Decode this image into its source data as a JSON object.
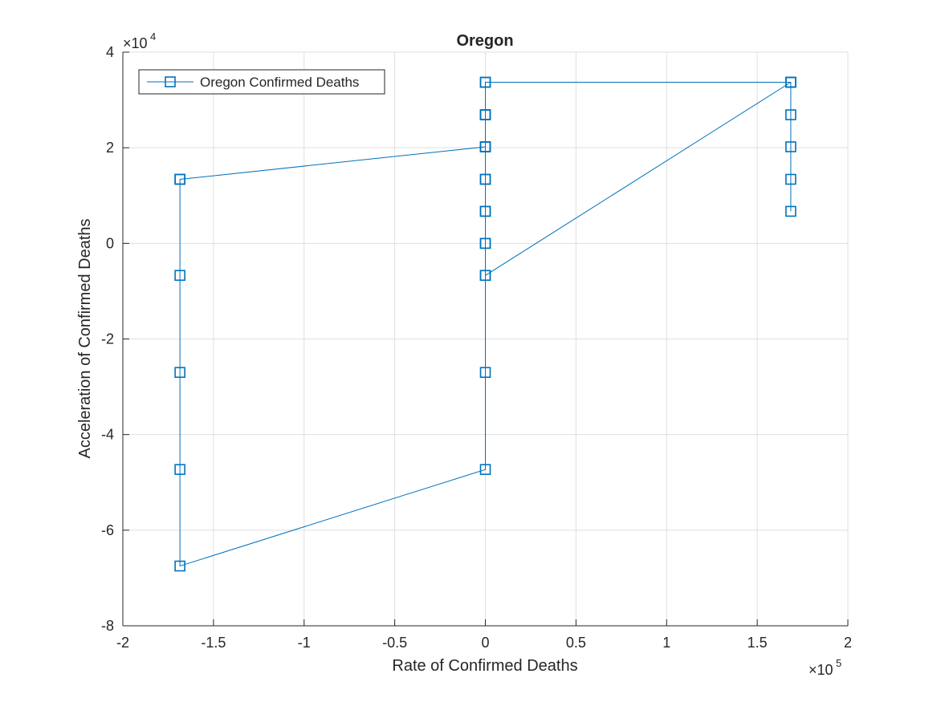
{
  "chart_data": {
    "type": "line",
    "title": "Oregon",
    "xlabel": "Rate of Confirmed Deaths",
    "ylabel": "Acceleration of Confirmed Deaths",
    "x_exponent_base": "×10",
    "x_exponent_power": "5",
    "y_exponent_base": "×10",
    "y_exponent_power": "4",
    "xlim": [
      -200000,
      200000
    ],
    "ylim": [
      -80000,
      40000
    ],
    "x_ticks": [
      -200000,
      -150000,
      -100000,
      -50000,
      0,
      50000,
      100000,
      150000,
      200000
    ],
    "x_tick_labels": [
      "-2",
      "-1.5",
      "-1",
      "-0.5",
      "0",
      "0.5",
      "1",
      "1.5",
      "2"
    ],
    "y_ticks": [
      -80000,
      -60000,
      -40000,
      -20000,
      0,
      20000,
      40000
    ],
    "y_tick_labels": [
      "-8",
      "-6",
      "-4",
      "-2",
      "0",
      "2",
      "4"
    ],
    "grid": true,
    "legend_position": "top-left",
    "colors": {
      "series": "#0072BD",
      "grid": "#dfdfdf",
      "axis": "#262626"
    },
    "series": [
      {
        "name": "Oregon Confirmed Deaths",
        "marker": "square",
        "x": [
          168500,
          168500,
          168500,
          168500,
          168500,
          168500,
          0,
          0,
          0,
          0,
          0,
          0,
          0,
          0,
          0,
          -168500,
          -168500,
          -168500,
          -168500,
          -168500,
          -168500,
          0,
          0,
          0,
          0,
          0,
          0,
          0,
          0,
          0,
          168500
        ],
        "y": [
          6700,
          13400,
          20200,
          26900,
          33700,
          33700,
          33700,
          26900,
          20200,
          13400,
          6700,
          0,
          -6700,
          -27000,
          -47300,
          -67500,
          -47300,
          -27000,
          -6700,
          13400,
          13400,
          20200,
          26900,
          33700,
          26900,
          20200,
          13400,
          6700,
          0,
          -6700,
          33700
        ]
      }
    ]
  }
}
